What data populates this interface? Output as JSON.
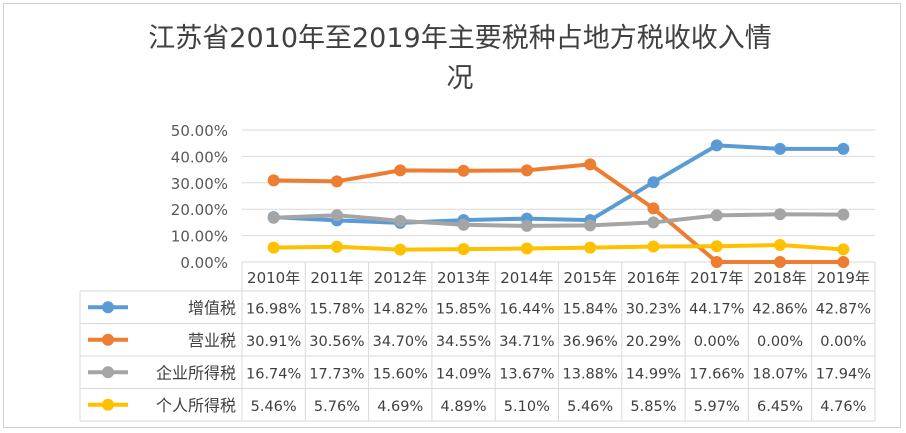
{
  "chart_data": {
    "type": "line",
    "title_line1": "江苏省2010年至2019年主要税种占地方税收收入情",
    "title_line2": "况",
    "categories": [
      "2010年",
      "2011年",
      "2012年",
      "2013年",
      "2014年",
      "2015年",
      "2016年",
      "2017年",
      "2018年",
      "2019年"
    ],
    "y_tick_labels": [
      "50.00%",
      "40.00%",
      "30.00%",
      "20.00%",
      "10.00%",
      "0.00%"
    ],
    "ylim": [
      0,
      50
    ],
    "grid": true,
    "legend": "data-table",
    "series": [
      {
        "name": "增值税",
        "color": "#5b9bd5",
        "values": [
          16.98,
          15.78,
          14.82,
          15.85,
          16.44,
          15.84,
          30.23,
          44.17,
          42.86,
          42.87
        ],
        "labels": [
          "16.98%",
          "15.78%",
          "14.82%",
          "15.85%",
          "16.44%",
          "15.84%",
          "30.23%",
          "44.17%",
          "42.86%",
          "42.87%"
        ]
      },
      {
        "name": "营业税",
        "color": "#ed7d31",
        "values": [
          30.91,
          30.56,
          34.7,
          34.55,
          34.71,
          36.96,
          20.29,
          0.0,
          0.0,
          0.0
        ],
        "labels": [
          "30.91%",
          "30.56%",
          "34.70%",
          "34.55%",
          "34.71%",
          "36.96%",
          "20.29%",
          "0.00%",
          "0.00%",
          "0.00%"
        ]
      },
      {
        "name": "企业所得税",
        "color": "#a5a5a5",
        "values": [
          16.74,
          17.73,
          15.6,
          14.09,
          13.67,
          13.88,
          14.99,
          17.66,
          18.07,
          17.94
        ],
        "labels": [
          "16.74%",
          "17.73%",
          "15.60%",
          "14.09%",
          "13.67%",
          "13.88%",
          "14.99%",
          "17.66%",
          "18.07%",
          "17.94%"
        ]
      },
      {
        "name": "个人所得税",
        "color": "#ffc000",
        "values": [
          5.46,
          5.76,
          4.69,
          4.89,
          5.1,
          5.46,
          5.85,
          5.97,
          6.45,
          4.76
        ],
        "labels": [
          "5.46%",
          "5.76%",
          "4.69%",
          "4.89%",
          "5.10%",
          "5.46%",
          "5.85%",
          "5.97%",
          "6.45%",
          "4.76%"
        ]
      }
    ]
  }
}
